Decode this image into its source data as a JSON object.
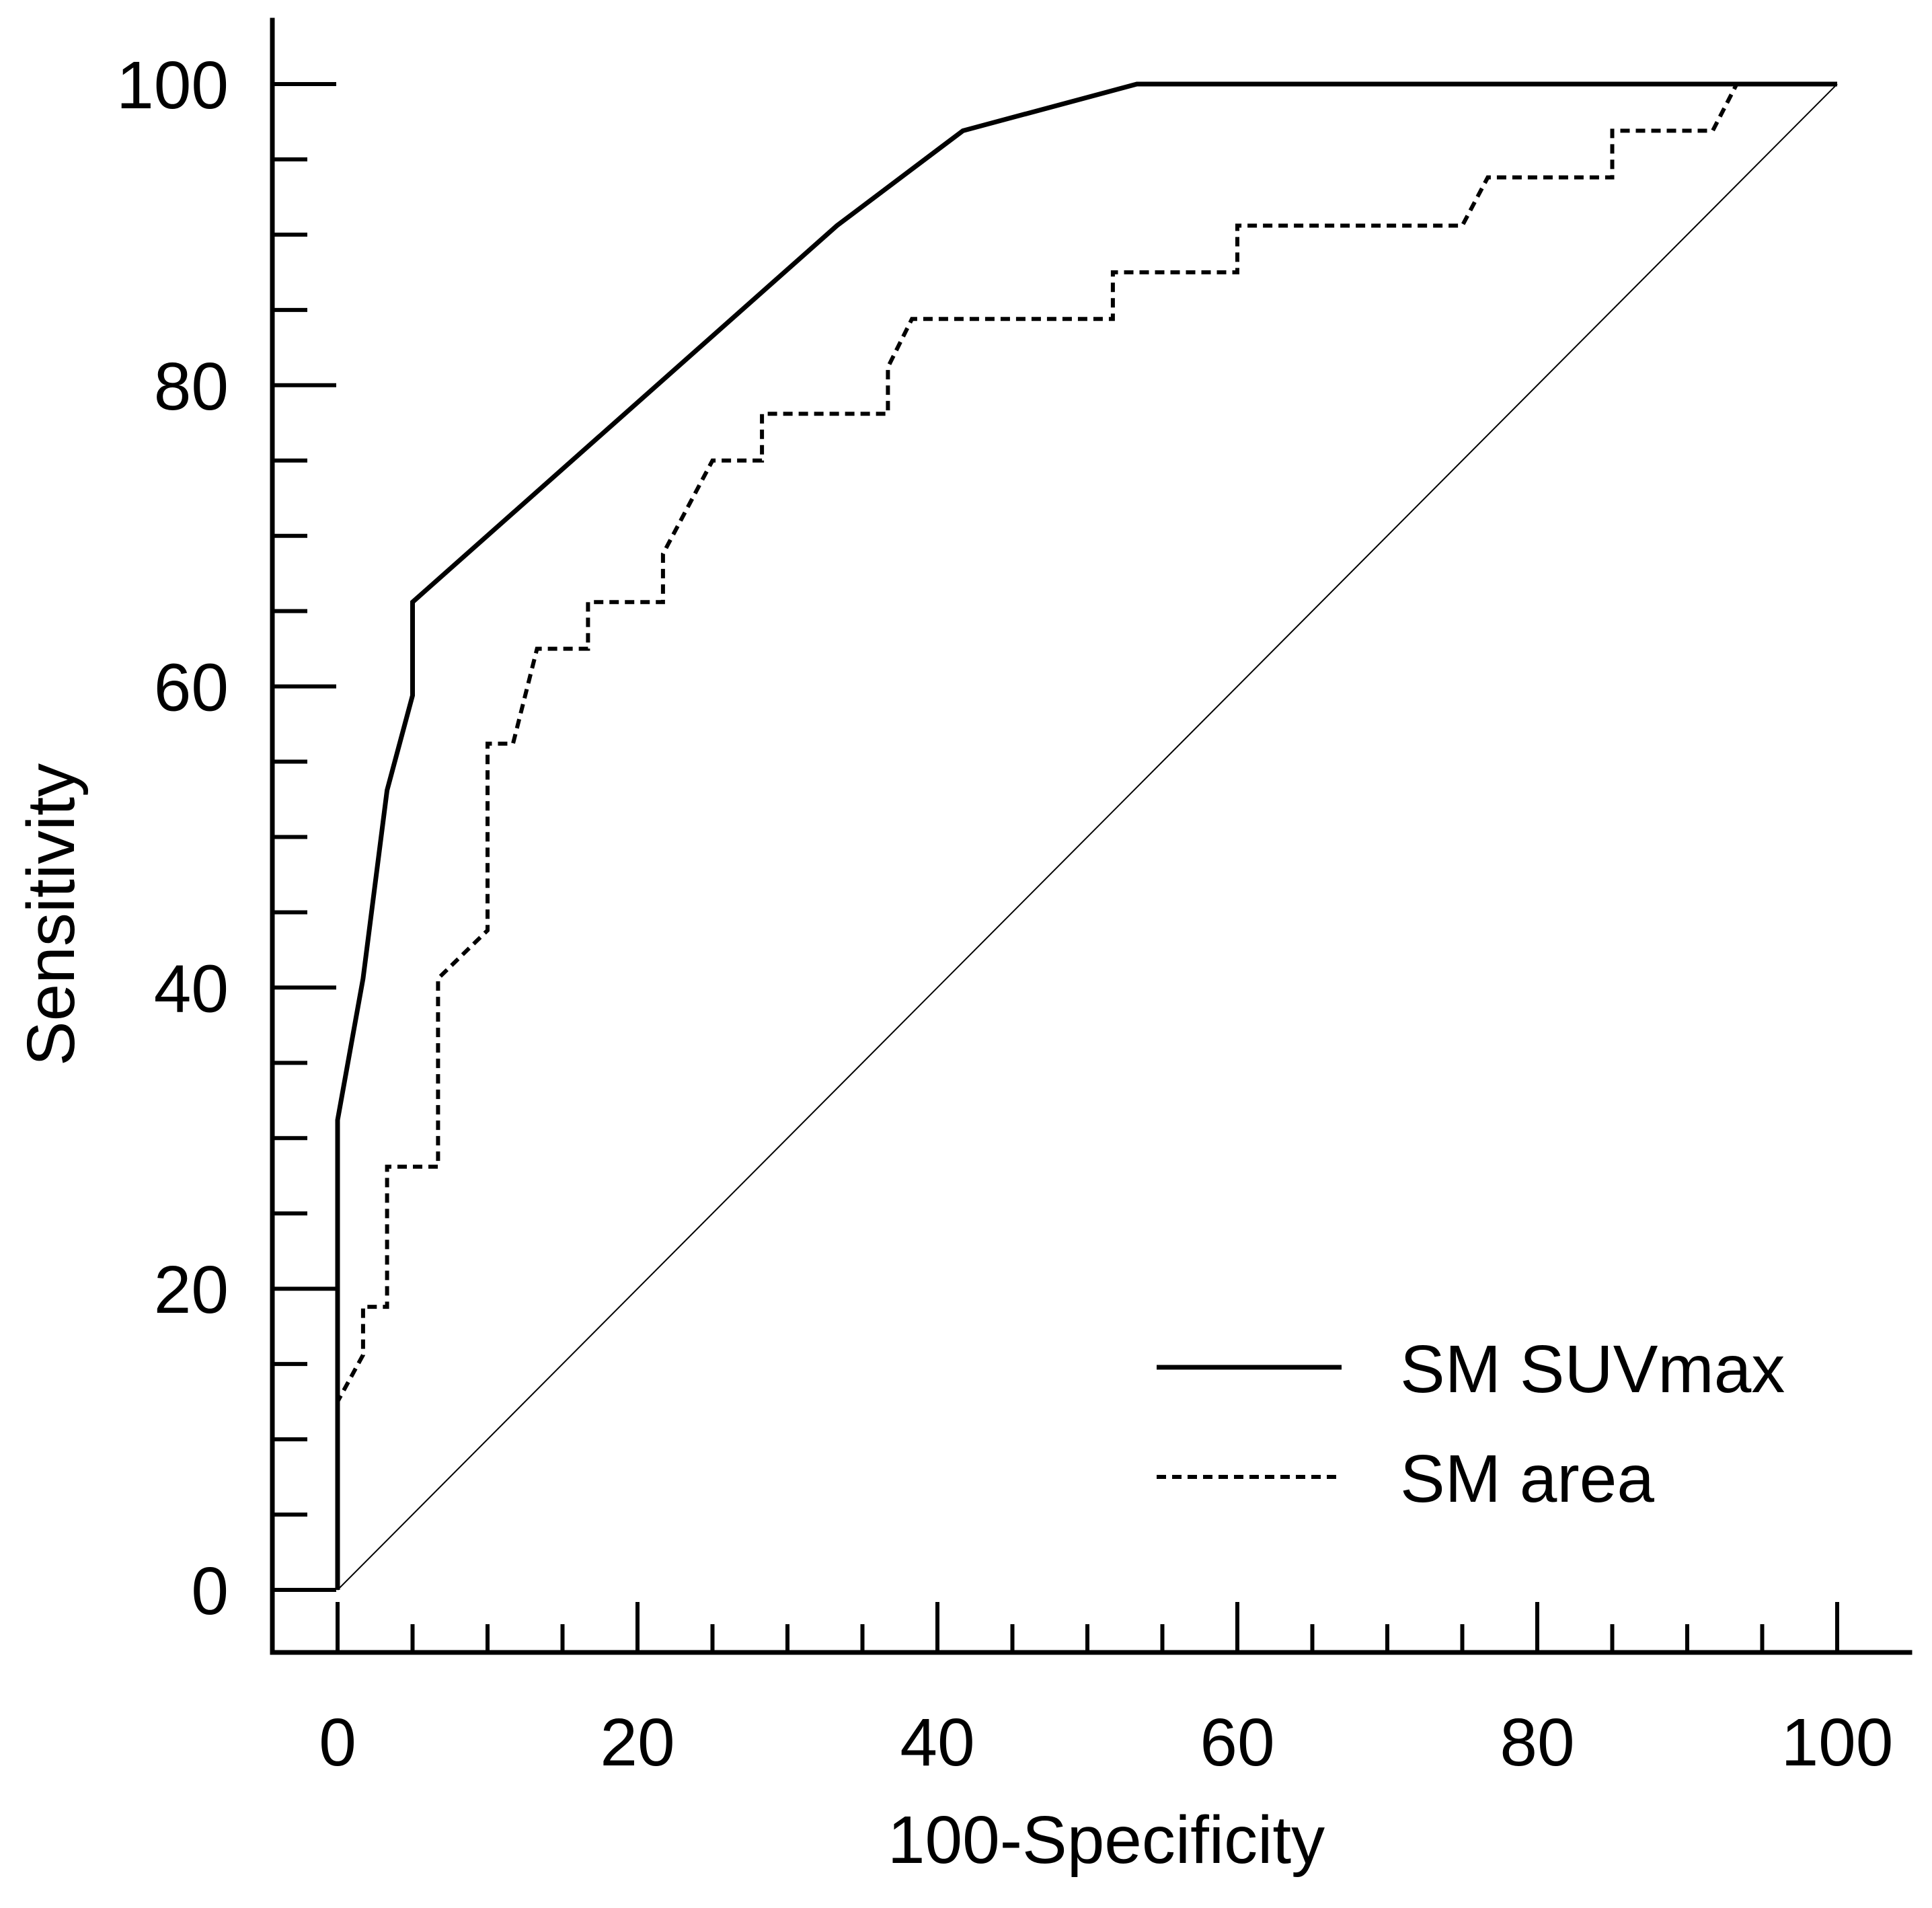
{
  "chart_data": {
    "type": "line",
    "title": "",
    "xlabel": "100-Specificity",
    "ylabel": "Sensitivity",
    "xlim": [
      0,
      100
    ],
    "ylim": [
      0,
      100
    ],
    "xticks": [
      "0",
      "20",
      "40",
      "60",
      "80",
      "100"
    ],
    "yticks": [
      "0",
      "20",
      "40",
      "60",
      "80",
      "100"
    ],
    "minor_tick_step": 5,
    "grid": false,
    "legend_position": "bottom-right",
    "reference_line": {
      "name": "diagonal",
      "x": [
        0,
        100
      ],
      "y": [
        0,
        100
      ]
    },
    "series": [
      {
        "name": "SM SUVmax",
        "style": "solid",
        "x": [
          0,
          0,
          1.7,
          3.3,
          5.0,
          5.0,
          33.3,
          41.7,
          53.3,
          100
        ],
        "y": [
          0,
          31.2,
          40.6,
          53.1,
          59.4,
          65.6,
          90.6,
          96.9,
          100,
          100
        ]
      },
      {
        "name": "SM area",
        "style": "dashed",
        "x": [
          0,
          0,
          1.7,
          1.7,
          3.3,
          3.3,
          6.7,
          6.7,
          10.0,
          10.0,
          11.7,
          13.3,
          16.7,
          16.7,
          21.7,
          21.7,
          25.0,
          28.3,
          28.3,
          36.7,
          36.7,
          38.3,
          51.7,
          51.7,
          60.0,
          60.0,
          75.0,
          76.7,
          85.0,
          85.0,
          91.7,
          93.3,
          100
        ],
        "y": [
          0,
          12.5,
          15.6,
          18.8,
          18.8,
          28.1,
          28.1,
          40.6,
          43.8,
          56.2,
          56.2,
          62.5,
          62.5,
          65.6,
          65.6,
          68.8,
          75.0,
          75.0,
          78.1,
          78.1,
          81.2,
          84.4,
          84.4,
          87.5,
          87.5,
          90.6,
          90.6,
          93.8,
          93.8,
          96.9,
          96.9,
          100,
          100
        ]
      }
    ]
  }
}
